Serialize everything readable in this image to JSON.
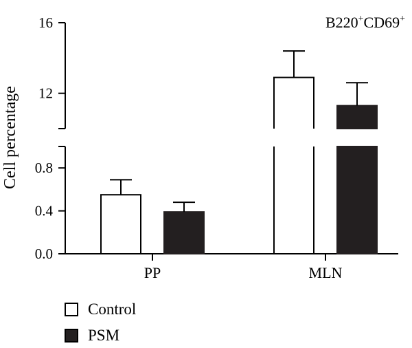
{
  "chart_data": {
    "type": "bar",
    "title": "B220+CD69+",
    "title_parts": {
      "base1": "B220",
      "sup1": "+",
      "base2": "CD69",
      "sup2": "+"
    },
    "ylabel": "Cell percentage",
    "xlabel": "",
    "categories": [
      "PP",
      "MLN"
    ],
    "series": [
      {
        "name": "Control",
        "values": [
          0.55,
          12.9
        ],
        "errors": [
          0.14,
          1.5
        ],
        "color": "#ffffff"
      },
      {
        "name": "PSM",
        "values": [
          0.39,
          11.3
        ],
        "errors": [
          0.09,
          1.3
        ],
        "color": "#231f20"
      }
    ],
    "axis_break": true,
    "ylim_lower": [
      0,
      1.0
    ],
    "ylim_upper": [
      10,
      16
    ],
    "yticks_lower": [
      0.0,
      0.4,
      0.8
    ],
    "yticks_upper": [
      12,
      16
    ],
    "ytick_labels": [
      "0.0",
      "0.4",
      "0.8",
      "12",
      "16"
    ],
    "grid": false,
    "legend_position": "bottom-left"
  }
}
